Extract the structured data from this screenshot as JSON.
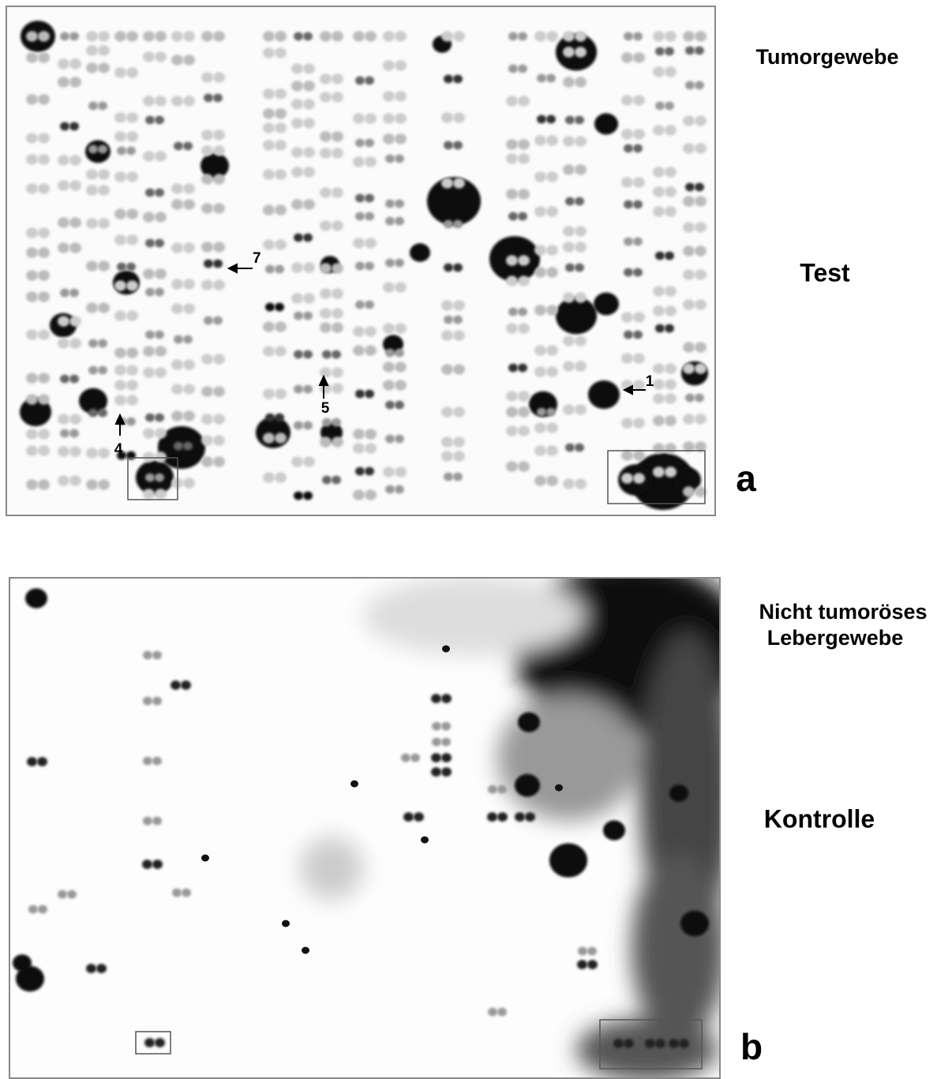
{
  "panel_a": {
    "title": "Tumorgewebe",
    "condition": "Test",
    "letter": "a",
    "markers": [
      "7",
      "5",
      "4",
      "1"
    ]
  },
  "panel_b": {
    "title_lines": [
      "Nicht tumoröses",
      "Lebergewebe"
    ],
    "condition": "Kontrolle",
    "letter": "b"
  }
}
